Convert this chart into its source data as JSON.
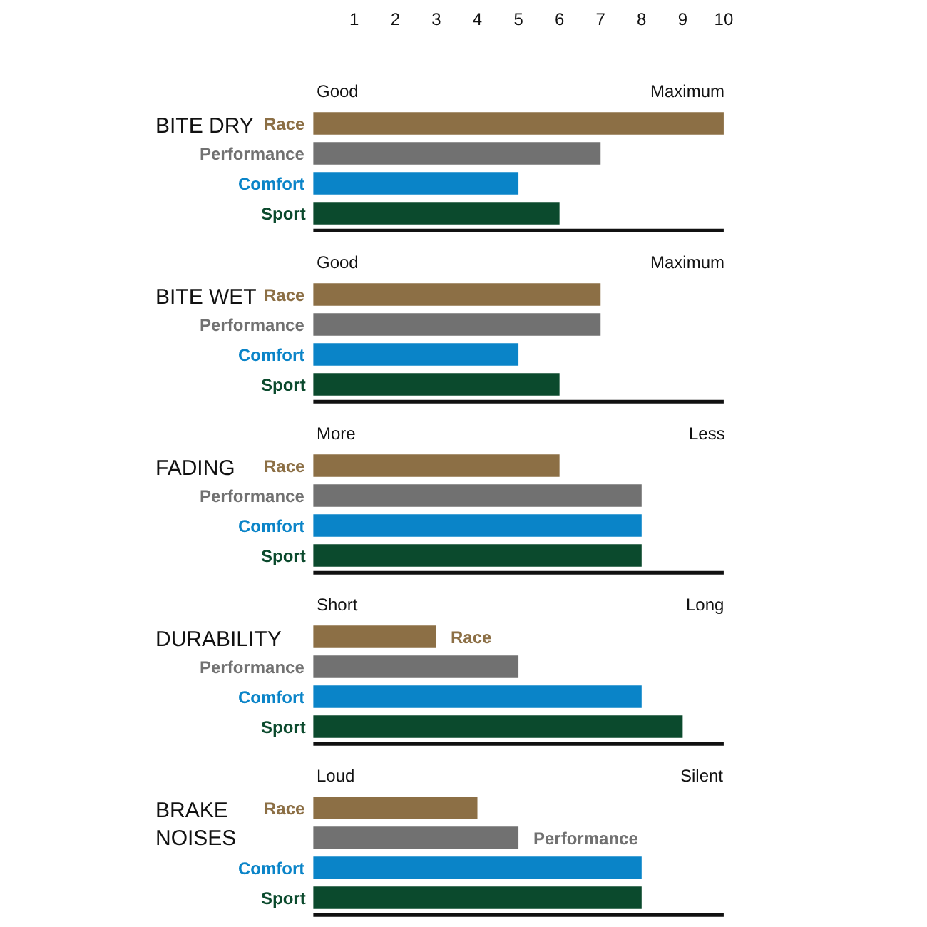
{
  "chart_data": [
    {
      "type": "bar",
      "orientation": "horizontal",
      "title": "BITE DRY",
      "categories": [
        "Race",
        "Performance",
        "Comfort",
        "Sport"
      ],
      "values": [
        10,
        7,
        5,
        6
      ],
      "colors": [
        "#8c6f45",
        "#717171",
        "#0a84c8",
        "#0b4a2d"
      ],
      "xlim": [
        0,
        10
      ],
      "xticks": [
        1,
        2,
        3,
        4,
        5,
        6,
        7,
        8,
        9,
        10
      ],
      "annotations": [
        "Good",
        "Maximum"
      ]
    },
    {
      "type": "bar",
      "orientation": "horizontal",
      "title": "BITE WET",
      "categories": [
        "Race",
        "Performance",
        "Comfort",
        "Sport"
      ],
      "values": [
        7,
        7,
        5,
        6
      ],
      "colors": [
        "#8c6f45",
        "#717171",
        "#0a84c8",
        "#0b4a2d"
      ],
      "xlim": [
        0,
        10
      ],
      "tick_labels": "y",
      "annotations": [
        "Good",
        "Maximum"
      ]
    },
    {
      "type": "bar",
      "orientation": "horizontal",
      "title": "FADING",
      "categories": [
        "Race",
        "Performance",
        "Comfort",
        "Sport"
      ],
      "values": [
        6,
        8,
        8,
        8
      ],
      "colors": [
        "#8c6f45",
        "#717171",
        "#0a84c8",
        "#0b4a2d"
      ],
      "xlim": [
        0,
        10
      ],
      "tick_labels": "y",
      "annotations": [
        "More",
        "Less"
      ]
    },
    {
      "type": "bar",
      "orientation": "horizontal",
      "title": "DURABILITY",
      "categories": [
        "Race",
        "Performance",
        "Comfort",
        "Sport"
      ],
      "values": [
        3,
        5,
        8,
        9
      ],
      "colors": [
        "#8c6f45",
        "#717171",
        "#0a84c8",
        "#0b4a2d"
      ],
      "xlim": [
        0,
        10
      ],
      "tick_labels": "y",
      "annotations": [
        "Short",
        "Long"
      ]
    },
    {
      "type": "bar",
      "orientation": "horizontal",
      "title": "BRAKE NOISES",
      "categories": [
        "Race",
        "Performance",
        "Comfort",
        "Sport"
      ],
      "values": [
        4,
        5,
        8,
        8
      ],
      "colors": [
        "#8c6f45",
        "#717171",
        "#0a84c8",
        "#0b4a2d"
      ],
      "xlim": [
        0,
        10
      ],
      "tick_labels": "y",
      "annotations": [
        "Loud",
        "Silent"
      ]
    }
  ]
}
